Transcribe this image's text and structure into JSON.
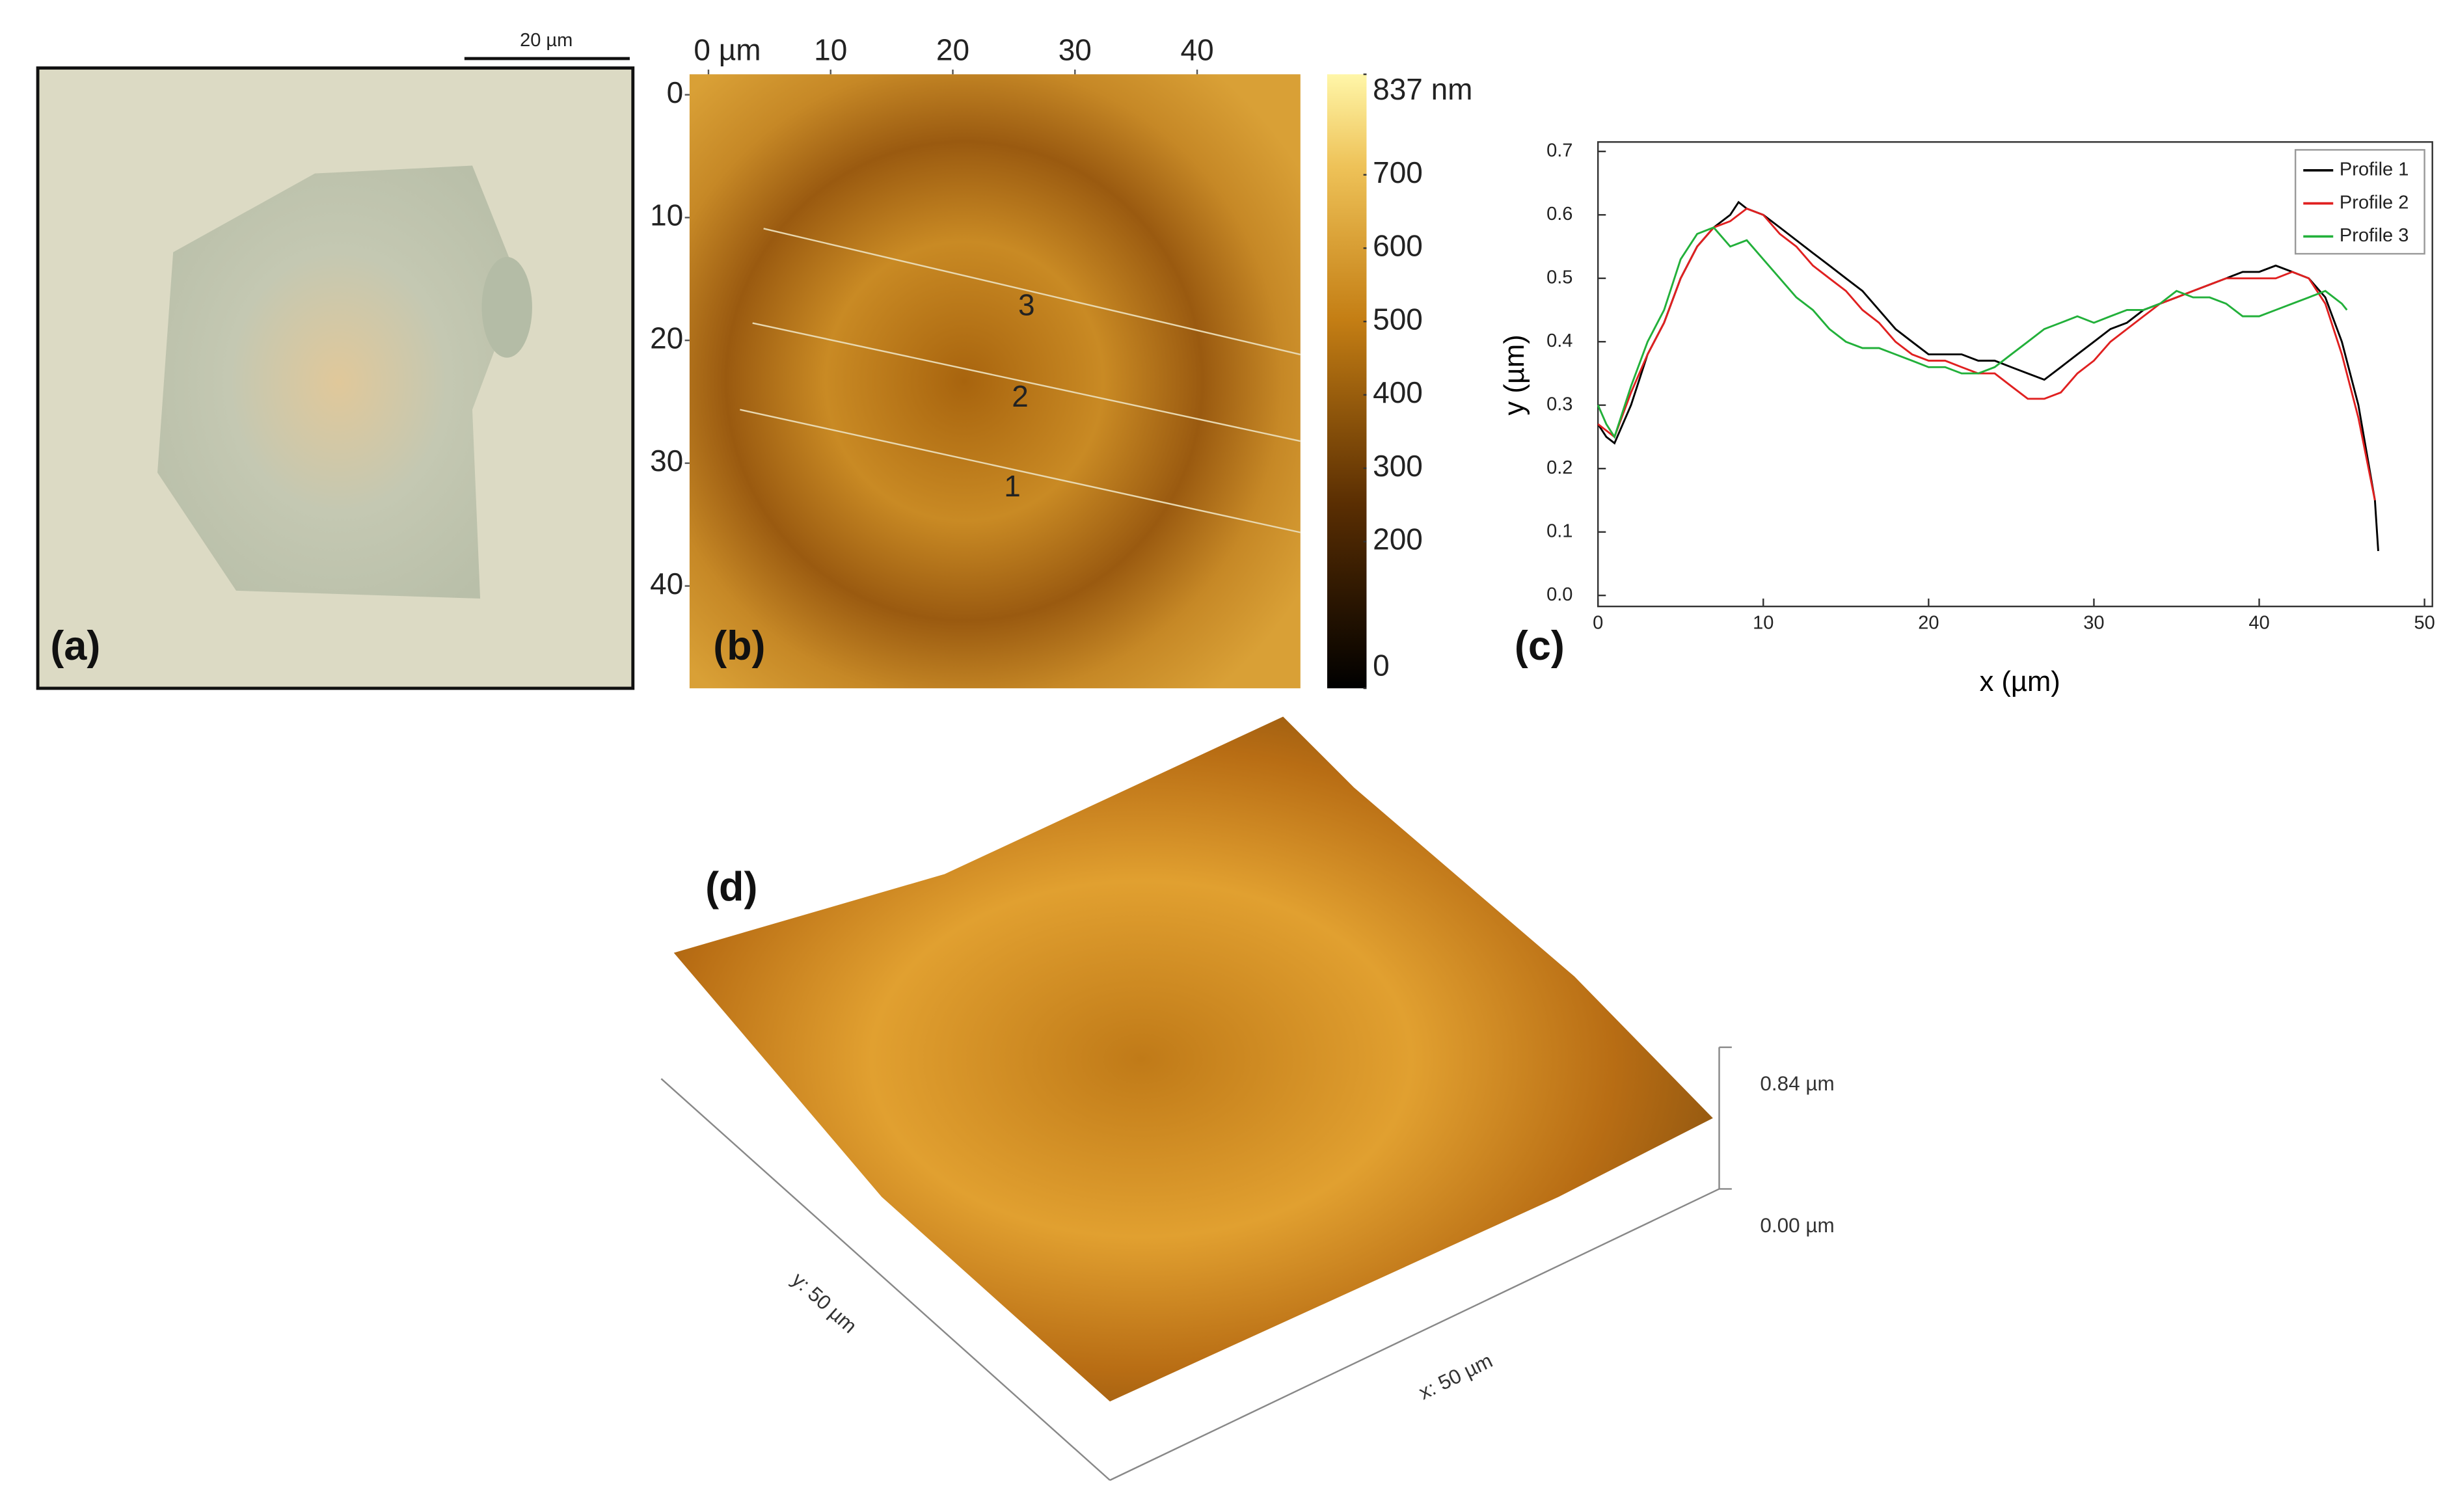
{
  "chart_data": [
    {
      "type": "image",
      "label": "(a)",
      "scalebar": "20 µm"
    },
    {
      "type": "heatmap",
      "label": "(b)",
      "xlim": [
        0,
        50
      ],
      "xticks": [
        {
          "value": 0,
          "label": "0 µm"
        },
        10,
        20,
        30,
        40
      ],
      "ylim": [
        0,
        50
      ],
      "yticks": [
        0,
        10,
        20,
        30,
        40
      ],
      "clim": [
        0,
        837
      ],
      "cticks": [
        0,
        200,
        300,
        400,
        500,
        600,
        700,
        {
          "value": 837,
          "label": "837 nm"
        }
      ],
      "profiles": [
        "1",
        "2",
        "3"
      ]
    },
    {
      "type": "line",
      "label": "(c)",
      "x_label": "x (µm)",
      "y_label": "y (µm)",
      "xlim": [
        0,
        50
      ],
      "xticks": [
        0,
        10,
        20,
        30,
        40,
        50
      ],
      "ylim": [
        0,
        0.7
      ],
      "yticks": [
        {
          "value": 0,
          "label": "0.0"
        },
        0.1,
        0.2,
        0.3,
        0.4,
        0.5,
        0.6,
        0.7
      ],
      "legend": "upper right",
      "series": [
        {
          "name": "Profile 1",
          "color": "#000000",
          "x": [
            0,
            0.5,
            1,
            2,
            3,
            4,
            5,
            6,
            7,
            8,
            8.5,
            9,
            10,
            11,
            12,
            13,
            14,
            15,
            16,
            17,
            18,
            19,
            20,
            21,
            22,
            23,
            24,
            25,
            26,
            27,
            28,
            29,
            30,
            31,
            32,
            33,
            34,
            35,
            36,
            37,
            38,
            39,
            40,
            41,
            42,
            43,
            44,
            45,
            46,
            47,
            47.2
          ],
          "values": [
            0.27,
            0.25,
            0.24,
            0.3,
            0.38,
            0.43,
            0.5,
            0.55,
            0.58,
            0.6,
            0.62,
            0.61,
            0.6,
            0.58,
            0.56,
            0.54,
            0.52,
            0.5,
            0.48,
            0.45,
            0.42,
            0.4,
            0.38,
            0.38,
            0.38,
            0.37,
            0.37,
            0.36,
            0.35,
            0.34,
            0.36,
            0.38,
            0.4,
            0.42,
            0.43,
            0.45,
            0.46,
            0.47,
            0.48,
            0.49,
            0.5,
            0.51,
            0.51,
            0.52,
            0.51,
            0.5,
            0.47,
            0.4,
            0.3,
            0.15,
            0.07
          ]
        },
        {
          "name": "Profile 2",
          "color": "#e02020",
          "x": [
            0,
            1,
            2,
            3,
            4,
            5,
            6,
            7,
            8,
            9,
            10,
            11,
            12,
            13,
            14,
            15,
            16,
            17,
            18,
            19,
            20,
            21,
            22,
            23,
            24,
            25,
            26,
            27,
            28,
            29,
            30,
            31,
            32,
            33,
            34,
            35,
            36,
            37,
            38,
            39,
            40,
            41,
            42,
            43,
            44,
            45,
            46,
            47
          ],
          "values": [
            0.27,
            0.25,
            0.32,
            0.38,
            0.43,
            0.5,
            0.55,
            0.58,
            0.59,
            0.61,
            0.6,
            0.57,
            0.55,
            0.52,
            0.5,
            0.48,
            0.45,
            0.43,
            0.4,
            0.38,
            0.37,
            0.37,
            0.36,
            0.35,
            0.35,
            0.33,
            0.31,
            0.31,
            0.32,
            0.35,
            0.37,
            0.4,
            0.42,
            0.44,
            0.46,
            0.47,
            0.48,
            0.49,
            0.5,
            0.5,
            0.5,
            0.5,
            0.51,
            0.5,
            0.46,
            0.38,
            0.28,
            0.15
          ]
        },
        {
          "name": "Profile 3",
          "color": "#22b03a",
          "x": [
            0,
            0.5,
            1,
            2,
            3,
            4,
            5,
            6,
            7,
            8,
            9,
            10,
            11,
            12,
            13,
            14,
            15,
            16,
            17,
            18,
            19,
            20,
            21,
            22,
            23,
            24,
            25,
            26,
            27,
            28,
            29,
            30,
            31,
            32,
            33,
            34,
            35,
            36,
            37,
            38,
            39,
            40,
            41,
            42,
            43,
            44,
            45,
            45.3
          ],
          "values": [
            0.3,
            0.27,
            0.25,
            0.33,
            0.4,
            0.45,
            0.53,
            0.57,
            0.58,
            0.55,
            0.56,
            0.53,
            0.5,
            0.47,
            0.45,
            0.42,
            0.4,
            0.39,
            0.39,
            0.38,
            0.37,
            0.36,
            0.36,
            0.35,
            0.35,
            0.36,
            0.38,
            0.4,
            0.42,
            0.43,
            0.44,
            0.43,
            0.44,
            0.45,
            0.45,
            0.46,
            0.48,
            0.47,
            0.47,
            0.46,
            0.44,
            0.44,
            0.45,
            0.46,
            0.47,
            0.48,
            0.46,
            0.45
          ]
        }
      ]
    },
    {
      "type": "surface",
      "label": "(d)",
      "x_label": "x: 50 µm",
      "y_label": "y: 50 µm",
      "zlim": [
        0,
        0.84
      ],
      "zticks": [
        {
          "value": 0,
          "label": "0.00 µm"
        },
        {
          "value": 0.84,
          "label": "0.84 µm"
        }
      ]
    }
  ]
}
